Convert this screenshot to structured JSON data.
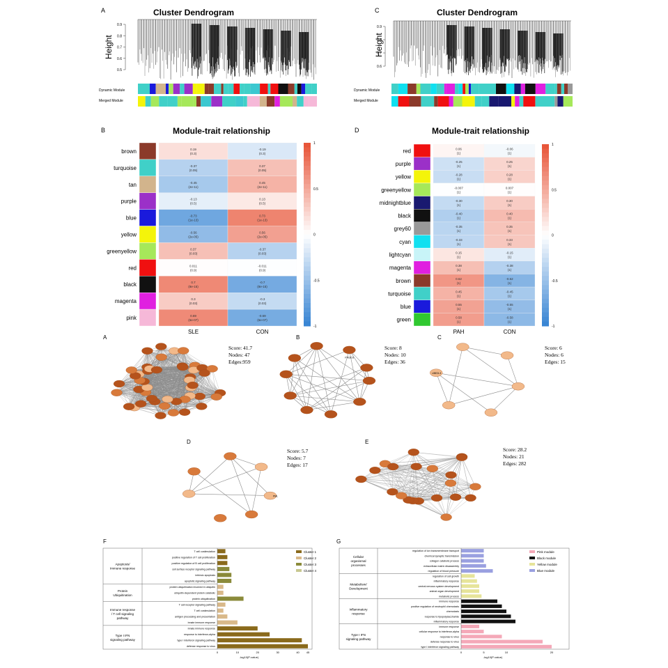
{
  "colors": {
    "cool": "#3a86d4",
    "warm": "#e8563a",
    "node_dark": "#b5531c",
    "node_mid": "#d87a3b",
    "node_light": "#f2b98a",
    "edge": "#8a8a8a"
  },
  "panel_A": {
    "letter": "A",
    "title": "Cluster Dendrogram",
    "ylabel": "Height",
    "ticks": [
      "0.9",
      "0.8",
      "0.7",
      "0.6",
      "0.5"
    ],
    "row_labels": [
      "Dynamic Module",
      "Merged Module"
    ]
  },
  "panel_C": {
    "letter": "C",
    "title": "Cluster Dendrogram",
    "ylabel": "Height",
    "ticks": [
      "0.9",
      "0.8",
      "0.7",
      "0.6"
    ],
    "row_labels": [
      "Dynamic Module",
      "Merged Module"
    ]
  },
  "panel_B": {
    "letter": "B",
    "title": "Module-trait relationship",
    "columns": [
      "SLE",
      "CON"
    ],
    "scale": [
      "1",
      "0.5",
      "0",
      "-0.5",
      "-1"
    ],
    "rows": [
      {
        "name": "brown",
        "color": "#8b3a2a",
        "v": [
          0.19,
          -0.19
        ],
        "c1": "0.19\n(0.3)",
        "c2": "-0.19\n(0.3)"
      },
      {
        "name": "turquoise",
        "color": "#40d0c8",
        "v": [
          -0.37,
          0.37
        ],
        "c1": "-0.37\n(0.05)",
        "c2": "0.37\n(0.05)"
      },
      {
        "name": "tan",
        "color": "#d2b48c",
        "v": [
          -0.45,
          0.45
        ],
        "c1": "-0.45\n(2e-11)",
        "c2": "0.45\n(2e-11)"
      },
      {
        "name": "purple",
        "color": "#9b30c8",
        "v": [
          -0.13,
          0.13
        ],
        "c1": "-0.13\n(0.5)",
        "c2": "0.13\n(0.5)"
      },
      {
        "name": "blue",
        "color": "#1a1adc",
        "v": [
          -0.73,
          0.73
        ],
        "c1": "-0.73\n(1e-13)",
        "c2": "0.73\n(1e-13)"
      },
      {
        "name": "yellow",
        "color": "#f4f40a",
        "v": [
          -0.56,
          0.56
        ],
        "c1": "-0.56\n(2e-05)",
        "c2": "0.56\n(2e-05)"
      },
      {
        "name": "greenyellow",
        "color": "#a6e85a",
        "v": [
          0.37,
          -0.37
        ],
        "c1": "0.37\n(0.03)",
        "c2": "-0.37\n(0.03)"
      },
      {
        "name": "red",
        "color": "#f01010",
        "v": [
          0.011,
          -0.011
        ],
        "c1": "0.011\n(0.9)",
        "c2": "-0.011\n(0.9)"
      },
      {
        "name": "black",
        "color": "#111111",
        "v": [
          0.7,
          -0.7
        ],
        "c1": "0.7\n(8e-15)",
        "c2": "-0.7\n(8e-15)"
      },
      {
        "name": "magenta",
        "color": "#e020e0",
        "v": [
          0.3,
          -0.3
        ],
        "c1": "0.3\n(0.03)",
        "c2": "-0.3\n(0.03)"
      },
      {
        "name": "pink",
        "color": "#f6b8d8",
        "v": [
          0.69,
          -0.69
        ],
        "c1": "0.69\n(6e-07)",
        "c2": "-0.69\n(6e-07)"
      }
    ]
  },
  "panel_D": {
    "letter": "D",
    "title": "Module-trait relationship",
    "columns": [
      "PAH",
      "CON"
    ],
    "scale": [
      "1",
      "0.5",
      "0",
      "-0.5",
      "-1"
    ],
    "rows": [
      {
        "name": "red",
        "color": "#f01010",
        "v": [
          0.06,
          -0.06
        ],
        "c1": "0.06\n(1)",
        "c2": "-0.06\n(1)"
      },
      {
        "name": "purple",
        "color": "#9b30c8",
        "v": [
          -0.25,
          0.25
        ],
        "c1": "-0.25\n(1)",
        "c2": "0.25\n(1)"
      },
      {
        "name": "yellow",
        "color": "#f4f40a",
        "v": [
          -0.28,
          0.28
        ],
        "c1": "-0.28\n(1)",
        "c2": "0.28\n(1)"
      },
      {
        "name": "greenyellow",
        "color": "#a6e85a",
        "v": [
          -0.01,
          0.01
        ],
        "c1": "-0.007\n(1)",
        "c2": "0.007\n(1)"
      },
      {
        "name": "midnightblue",
        "color": "#191970",
        "v": [
          -0.3,
          0.3
        ],
        "c1": "-0.30\n(1)",
        "c2": "0.30\n(1)"
      },
      {
        "name": "black",
        "color": "#111111",
        "v": [
          -0.4,
          0.4
        ],
        "c1": "-0.40\n(1)",
        "c2": "0.40\n(1)"
      },
      {
        "name": "grey60",
        "color": "#999999",
        "v": [
          -0.35,
          0.35
        ],
        "c1": "-0.35\n(1)",
        "c2": "0.35\n(1)"
      },
      {
        "name": "cyan",
        "color": "#10e0f0",
        "v": [
          -0.33,
          0.33
        ],
        "c1": "-0.33\n(1)",
        "c2": "0.33\n(1)"
      },
      {
        "name": "lightcyan",
        "color": "#c8f4f8",
        "v": [
          0.15,
          -0.15
        ],
        "c1": "0.15\n(1)",
        "c2": "-0.15\n(1)"
      },
      {
        "name": "magenta",
        "color": "#e020e0",
        "v": [
          0.38,
          -0.38
        ],
        "c1": "0.38\n(1)",
        "c2": "-0.38\n(1)"
      },
      {
        "name": "brown",
        "color": "#8b3a2a",
        "v": [
          0.62,
          -0.62
        ],
        "c1": "0.62\n(1)",
        "c2": "-0.62\n(1)"
      },
      {
        "name": "turquoise",
        "color": "#40d0c8",
        "v": [
          0.45,
          -0.45
        ],
        "c1": "0.45\n(1)",
        "c2": "-0.45\n(1)"
      },
      {
        "name": "blue",
        "color": "#1a1adc",
        "v": [
          0.55,
          -0.55
        ],
        "c1": "0.55\n(1)",
        "c2": "-0.55\n(1)"
      },
      {
        "name": "green",
        "color": "#30c830",
        "v": [
          0.58,
          -0.58
        ],
        "c1": "0.58\n(1)",
        "c2": "-0.58\n(1)"
      }
    ]
  },
  "networks": [
    {
      "letter": "A",
      "score": "Score: 41.7",
      "nodes": "Nodes: 47",
      "edges": "Edges:959"
    },
    {
      "letter": "B",
      "score": "Score: 8",
      "nodes": "Nodes: 10",
      "edges": "Edges: 36"
    },
    {
      "letter": "C",
      "score": "Score: 6",
      "nodes": "Nodes: 6",
      "edges": "Edges: 15"
    },
    {
      "letter": "D",
      "score": "Score: 5.7",
      "nodes": "Nodes: 7",
      "edges": "Edges: 17"
    },
    {
      "letter": "E",
      "score": "Score: 28.2",
      "nodes": "Nodes: 21",
      "edges": "Edges: 282"
    }
  ],
  "network_node_labels": [
    "PIK3CG",
    "UBE2L3",
    "PML"
  ],
  "panel_F": {
    "letter": "F",
    "xlabel": "-log10(P-value)",
    "legend": [
      {
        "name": "Cluster 1",
        "color": "#8a6a1c"
      },
      {
        "name": "Cluster 2",
        "color": "#d9b98a"
      },
      {
        "name": "Cluster 3",
        "color": "#8a8a3a"
      },
      {
        "name": "Cluster 4",
        "color": "#c8c890"
      }
    ],
    "groups": [
      {
        "name": "Apoptosis/\nImmune response",
        "terms": [
          {
            "label": "T cell costimulation",
            "v": 4,
            "c": 1
          },
          {
            "label": "positive regulation of T cell proliferation",
            "v": 5,
            "c": 1
          },
          {
            "label": "positive regulation of B cell proliferation",
            "v": 5,
            "c": 1
          },
          {
            "label": "cell surface receptor signaling pathway",
            "v": 6,
            "c": 3
          },
          {
            "label": "intrinsic apoptosis",
            "v": 7,
            "c": 3
          },
          {
            "label": "apoptotic signaling pathway",
            "v": 7,
            "c": 3
          }
        ]
      },
      {
        "name": "Protein\nUbiquitination",
        "terms": [
          {
            "label": "protein ubiquitination involved in ubiquitin",
            "v": 3,
            "c": 2
          },
          {
            "label": "ubiquitin-dependent protein catabolic",
            "v": 3,
            "c": 2
          },
          {
            "label": "protein ubiquitination",
            "v": 13,
            "c": 3
          }
        ]
      },
      {
        "name": "Immune response\n/ T cell signaling\npathway",
        "terms": [
          {
            "label": "T cell receptor signaling pathway",
            "v": 4,
            "c": 2
          },
          {
            "label": "T cell costimulation",
            "v": 3,
            "c": 2
          },
          {
            "label": "antigen processing and presentation",
            "v": 5,
            "c": 2
          },
          {
            "label": "innate immune response",
            "v": 10,
            "c": 2
          }
        ]
      },
      {
        "name": "Type I IFN\nsignaling pathway",
        "terms": [
          {
            "label": "innate immune response",
            "v": 20,
            "c": 1
          },
          {
            "label": "response to interferon-alpha",
            "v": 26,
            "c": 1
          },
          {
            "label": "type I interferon signaling pathway",
            "v": 42,
            "c": 1
          },
          {
            "label": "defense response to virus",
            "v": 45,
            "c": 1
          }
        ]
      }
    ],
    "ticks": [
      "0",
      "10",
      "20",
      "30",
      "40",
      "45"
    ]
  },
  "panel_G": {
    "letter": "G",
    "xlabel": "-log10(P-value)",
    "legend": [
      {
        "name": "Pink module",
        "color": "#f4a8b8"
      },
      {
        "name": "Black module",
        "color": "#111111"
      },
      {
        "name": "Yellow module",
        "color": "#e6e49a"
      },
      {
        "name": "Blue module",
        "color": "#9aa0e0"
      }
    ],
    "groups": [
      {
        "name": "Cellular\norganismal\nprocesses",
        "terms": [
          {
            "label": "regulation of ion transmembrane transport",
            "v": 5,
            "c": 4
          },
          {
            "label": "chemical synaptic transmission",
            "v": 5,
            "c": 4
          },
          {
            "label": "collagen catabolic process",
            "v": 5,
            "c": 4
          },
          {
            "label": "extracellular matrix disassembly",
            "v": 5.5,
            "c": 4
          },
          {
            "label": "regulation of blood pressure",
            "v": 7,
            "c": 4
          }
        ]
      },
      {
        "name": "Metabolism/\nDevelopment",
        "terms": [
          {
            "label": "regulation of cell growth",
            "v": 3,
            "c": 3
          },
          {
            "label": "inflammatory response",
            "v": 3.5,
            "c": 3
          },
          {
            "label": "central nervous system development",
            "v": 4,
            "c": 3
          },
          {
            "label": "animal organ development",
            "v": 4,
            "c": 3
          },
          {
            "label": "metabolic process",
            "v": 4.5,
            "c": 3
          }
        ]
      },
      {
        "name": "Inflammatory\nresponse",
        "terms": [
          {
            "label": "immune response",
            "v": 8,
            "c": 2
          },
          {
            "label": "positive regulation of neutrophil chemotaxis",
            "v": 9,
            "c": 2
          },
          {
            "label": "chemotaxis",
            "v": 10,
            "c": 2
          },
          {
            "label": "response to lipopolysaccharide",
            "v": 11,
            "c": 2
          },
          {
            "label": "inflammatory response",
            "v": 12,
            "c": 2
          }
        ]
      },
      {
        "name": "Type I IFN\nsignaling pathway",
        "terms": [
          {
            "label": "immune response",
            "v": 4,
            "c": 1
          },
          {
            "label": "cellular response to interferon-alpha",
            "v": 5,
            "c": 1
          },
          {
            "label": "response to virus",
            "v": 9,
            "c": 1
          },
          {
            "label": "defense response to virus",
            "v": 18,
            "c": 1
          },
          {
            "label": "type I interferon signaling pathway",
            "v": 20,
            "c": 1
          }
        ]
      }
    ],
    "ticks": [
      "0",
      "5",
      "10",
      "20"
    ]
  }
}
